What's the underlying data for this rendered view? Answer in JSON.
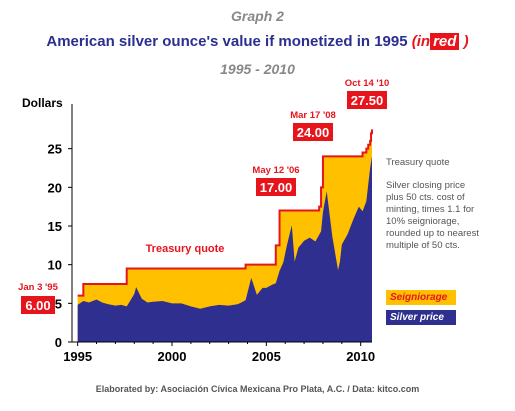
{
  "header": {
    "graph_number": "Graph 2",
    "title_main": "American silver ounce's value if monetized in 1995 ",
    "title_paren_open": "(in",
    "title_red_word": "red",
    "title_paren_close": " )",
    "subtitle": "1995 - 2010"
  },
  "footer": "Elaborated by: Asociación Cívica Mexicana Pro Plata, A.C.  / Data: kitco.com",
  "side_notes": {
    "treasury_heading": "Treasury quote",
    "description": [
      "Silver closing price",
      "plus 50 cts. cost of",
      "minting, times 1.1 for",
      "10% seigniorage,",
      "rounded up to nearest",
      "multiple of 50 cts."
    ]
  },
  "legend": [
    {
      "label": "Seigniorage",
      "color": "#ffc000",
      "text_color": "#e8141c"
    },
    {
      "label": "Silver price",
      "color": "#2e2f8f",
      "text_color": "#ffffff"
    }
  ],
  "colors": {
    "treasury_line": "#e8141c",
    "seigniorage_fill": "#ffc000",
    "silver_fill": "#2e2f8f",
    "callout_bg": "#e8141c"
  },
  "chart_data": {
    "type": "area",
    "ylabel": "Dollars",
    "xlim": [
      1994.7,
      2010.6
    ],
    "ylim": [
      0,
      30
    ],
    "x_ticks": [
      1995,
      2000,
      2005,
      2010
    ],
    "y_ticks": [
      0,
      5,
      10,
      15,
      20,
      25
    ],
    "grid": false,
    "series": [
      {
        "name": "Treasury quote",
        "style": "step-line",
        "x": [
          1995.0,
          1995.3,
          1997.6,
          2003.9,
          2005.5,
          2005.7,
          2006.4,
          2007.8,
          2007.9,
          2008.0,
          2008.2,
          2010.1,
          2010.3,
          2010.4,
          2010.5,
          2010.55,
          2010.6
        ],
        "y": [
          6.0,
          7.5,
          9.5,
          10.0,
          12.5,
          17.0,
          17.0,
          17.5,
          20.0,
          24.0,
          24.0,
          24.5,
          25.0,
          25.5,
          26.0,
          27.0,
          27.5
        ]
      },
      {
        "name": "Silver price",
        "style": "area",
        "x": [
          1995.0,
          1995.3,
          1995.6,
          1996.0,
          1996.3,
          1996.6,
          1997.0,
          1997.3,
          1997.6,
          1998.0,
          1998.1,
          1998.4,
          1998.7,
          1999.0,
          1999.5,
          2000.0,
          2000.5,
          2001.0,
          2001.5,
          2002.0,
          2002.5,
          2003.0,
          2003.5,
          2003.9,
          2004.2,
          2004.5,
          2004.8,
          2005.0,
          2005.3,
          2005.5,
          2005.7,
          2005.9,
          2006.1,
          2006.35,
          2006.5,
          2006.7,
          2007.0,
          2007.3,
          2007.6,
          2007.9,
          2008.0,
          2008.2,
          2008.5,
          2008.8,
          2008.9,
          2009.0,
          2009.3,
          2009.6,
          2009.9,
          2010.1,
          2010.3,
          2010.5,
          2010.6
        ],
        "y": [
          4.8,
          5.3,
          5.1,
          5.5,
          5.1,
          4.9,
          4.7,
          4.8,
          4.6,
          6.2,
          7.1,
          5.6,
          5.1,
          5.2,
          5.3,
          5.0,
          5.0,
          4.6,
          4.3,
          4.6,
          4.8,
          4.7,
          4.9,
          5.4,
          8.3,
          6.1,
          7.0,
          7.0,
          7.4,
          7.6,
          9.2,
          10.3,
          12.6,
          15.1,
          10.4,
          12.2,
          13.1,
          13.5,
          13.0,
          14.3,
          16.8,
          19.5,
          13.6,
          9.3,
          10.4,
          12.6,
          13.9,
          15.8,
          17.5,
          16.9,
          18.2,
          22.5,
          24.0
        ]
      }
    ],
    "annotations": [
      {
        "date": "Jan 3 '95",
        "value": "6.00"
      },
      {
        "date": "May 12 '06",
        "value": "17.00"
      },
      {
        "date": "Mar 17 '08",
        "value": "24.00"
      },
      {
        "date": "Oct 14 '10",
        "value": "27.50"
      }
    ],
    "line_label": "Treasury quote"
  }
}
